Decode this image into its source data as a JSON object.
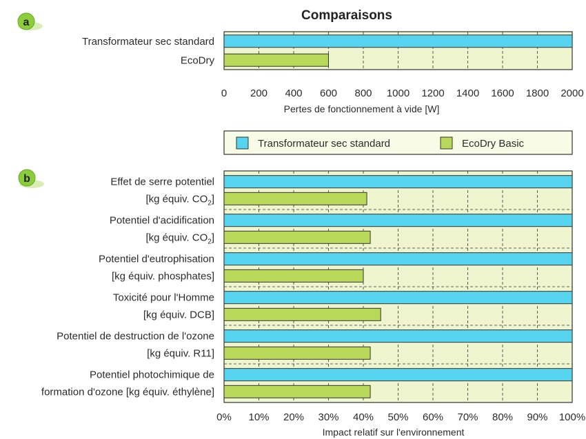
{
  "title": "Comparaisons",
  "colors": {
    "standard": "#56d3ee",
    "ecodry": "#b8d85a",
    "plot_bg": "#eef5cf",
    "legend_bg": "#f8fbe5",
    "badge": "#8ccd3c"
  },
  "chart_data": [
    {
      "panel": "a",
      "type": "bar",
      "orientation": "horizontal",
      "categories": [
        "Transformateur sec standard",
        "EcoDry"
      ],
      "values": [
        2000,
        600
      ],
      "xlabel": "Pertes de fonctionnement à vide [W]",
      "xlim": [
        0,
        2000
      ],
      "ticks": [
        0,
        200,
        400,
        600,
        800,
        1000,
        1200,
        1400,
        1600,
        1800,
        2000
      ],
      "grid": true
    },
    {
      "panel": "b",
      "type": "bar",
      "orientation": "horizontal",
      "categories": [
        {
          "line1": "Effet de serre potentiel",
          "line2": "[kg équiv. CO",
          "sub": "2",
          "line2_end": "]"
        },
        {
          "line1": "Potentiel d'acidification",
          "line2": "[kg équiv. CO",
          "sub": "2",
          "line2_end": "]"
        },
        {
          "line1": "Potentiel d'eutrophisation",
          "line2": "[kg équiv. phosphates]",
          "sub": "",
          "line2_end": ""
        },
        {
          "line1": "Toxicité pour l'Homme",
          "line2": "[kg équiv. DCB]",
          "sub": "",
          "line2_end": ""
        },
        {
          "line1": "Potentiel de destruction de l'ozone",
          "line2": "[kg équiv. R11]",
          "sub": "",
          "line2_end": ""
        },
        {
          "line1": "Potentiel photochimique de",
          "line2": "formation d'ozone [kg équiv. éthylène]",
          "sub": "",
          "line2_end": ""
        }
      ],
      "series": [
        {
          "name": "Transformateur sec standard",
          "values": [
            100,
            100,
            100,
            100,
            100,
            100
          ]
        },
        {
          "name": "EcoDry Basic",
          "values": [
            41,
            42,
            40,
            45,
            42,
            42
          ]
        }
      ],
      "xlabel": "Impact relatif sur l'environnement",
      "xlim": [
        0,
        100
      ],
      "ticks": [
        "0%",
        "10%",
        "20%",
        "30%",
        "40%",
        "50%",
        "60%",
        "70%",
        "80%",
        "90%",
        "100%"
      ],
      "grid": true,
      "legend": "top"
    }
  ]
}
